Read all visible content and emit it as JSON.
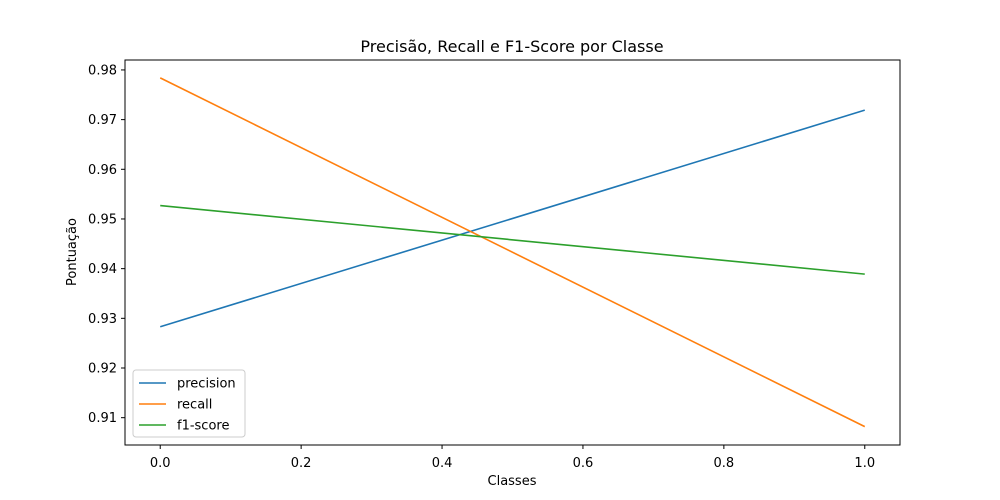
{
  "chart_data": {
    "type": "line",
    "title": "Precisão, Recall e F1-Score por Classe",
    "xlabel": "Classes",
    "ylabel": "Pontuação",
    "x": [
      0.0,
      1.0
    ],
    "xlim": [
      -0.05,
      1.05
    ],
    "ylim": [
      0.9045,
      0.982
    ],
    "xticks": [
      0.0,
      0.2,
      0.4,
      0.6,
      0.8,
      1.0
    ],
    "xtick_labels": [
      "0.0",
      "0.2",
      "0.4",
      "0.6",
      "0.8",
      "1.0"
    ],
    "yticks": [
      0.91,
      0.92,
      0.93,
      0.94,
      0.95,
      0.96,
      0.97,
      0.98
    ],
    "ytick_labels": [
      "0.91",
      "0.92",
      "0.93",
      "0.94",
      "0.95",
      "0.96",
      "0.97",
      "0.98"
    ],
    "grid": false,
    "legend_position": "lower-left",
    "series": [
      {
        "name": "precision",
        "values": [
          0.9283,
          0.9719
        ],
        "color": "#1f77b4"
      },
      {
        "name": "recall",
        "values": [
          0.9784,
          0.9082
        ],
        "color": "#ff7f0e"
      },
      {
        "name": "f1-score",
        "values": [
          0.9527,
          0.9389
        ],
        "color": "#2ca02c"
      }
    ]
  }
}
